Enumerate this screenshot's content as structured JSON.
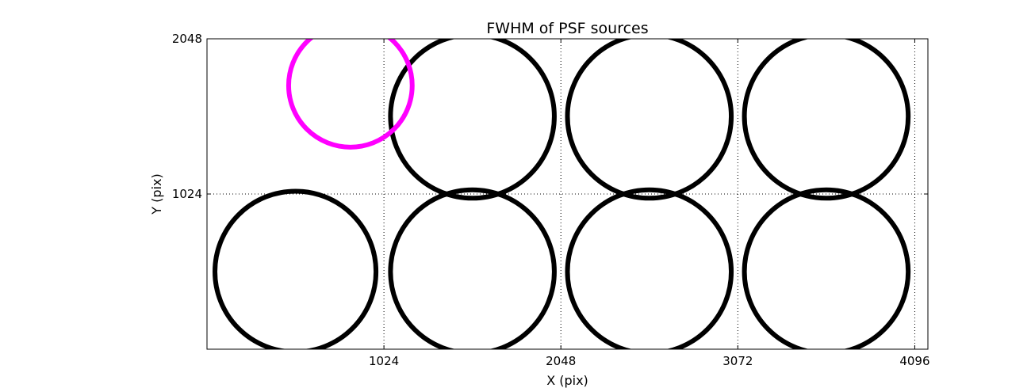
{
  "chart_data": {
    "type": "scatter",
    "title": "FWHM of PSF sources",
    "xlabel": "X (pix)",
    "ylabel": "Y (pix)",
    "xlim": [
      0,
      4172
    ],
    "ylim": [
      0,
      2048
    ],
    "grid": true,
    "grid_style": "dotted",
    "x_ticks": [
      1024,
      2048,
      3072,
      4096
    ],
    "x_tick_labels": [
      "1024",
      "2048",
      "3072",
      "4096"
    ],
    "y_ticks": [
      1024,
      2048
    ],
    "y_tick_labels": [
      "1024",
      "2048"
    ],
    "marker": "open-circle",
    "series": [
      {
        "color": "#000000",
        "points": [
          {
            "x": 512,
            "y": 512,
            "diameter": 932
          },
          {
            "x": 1536,
            "y": 512,
            "diameter": 948
          },
          {
            "x": 2560,
            "y": 512,
            "diameter": 948
          },
          {
            "x": 3584,
            "y": 512,
            "diameter": 948
          },
          {
            "x": 1536,
            "y": 1536,
            "diameter": 948
          },
          {
            "x": 2560,
            "y": 1536,
            "diameter": 948
          },
          {
            "x": 3584,
            "y": 1536,
            "diameter": 948
          }
        ]
      },
      {
        "color": "#ff00ff",
        "points": [
          {
            "x": 830,
            "y": 1740,
            "diameter": 715
          }
        ]
      }
    ]
  }
}
